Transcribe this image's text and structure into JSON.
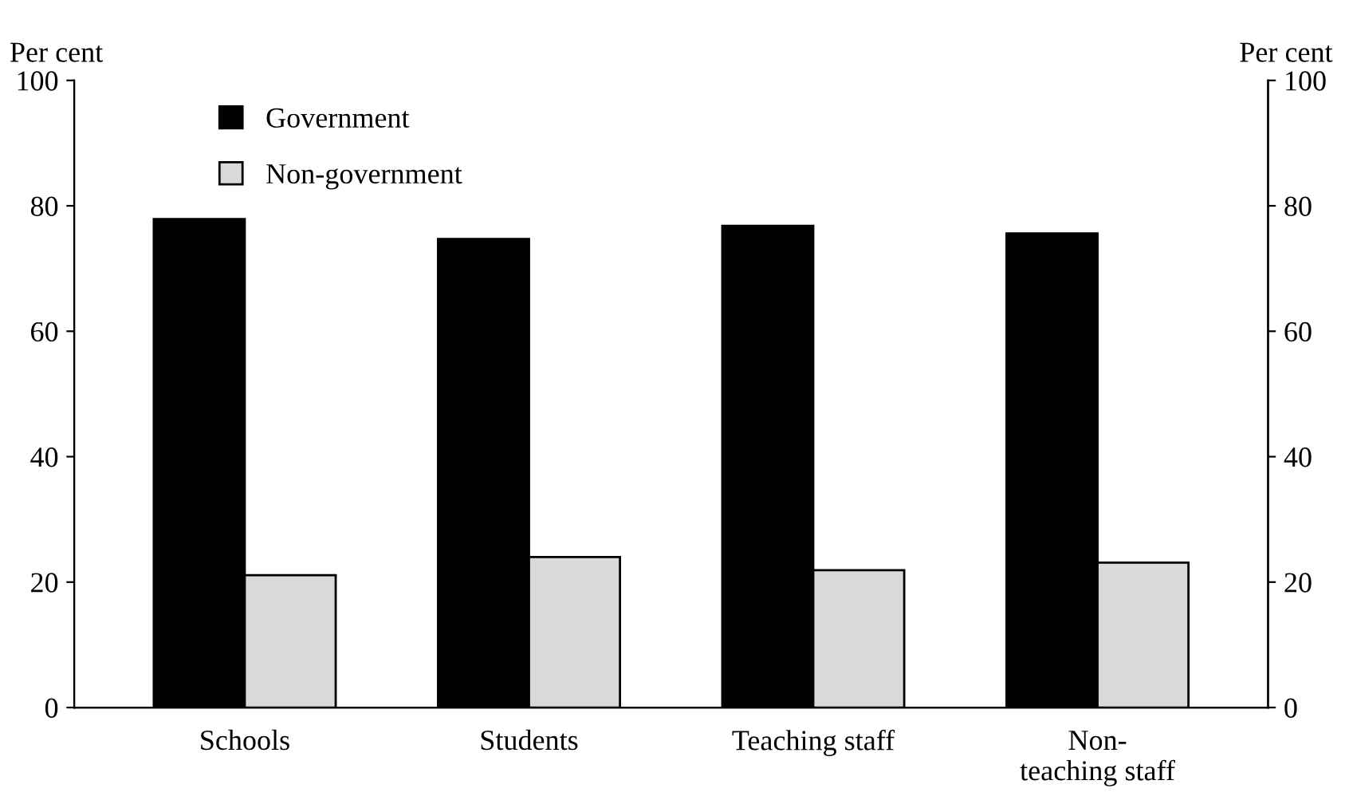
{
  "chart_data": {
    "type": "bar",
    "ylabel": "Per cent",
    "y2label": "Per cent",
    "categories": [
      "Schools",
      "Students",
      "Teaching staff",
      "Non-\nteaching staff"
    ],
    "series": [
      {
        "name": "Government",
        "color": "#000000",
        "values": [
          77.9,
          74.7,
          76.8,
          75.6
        ]
      },
      {
        "name": "Non-government",
        "color": "#d9d9d9",
        "values": [
          21.1,
          24.0,
          21.9,
          23.1
        ]
      }
    ],
    "ylim": [
      0,
      100
    ],
    "yticks": [
      0,
      20,
      40,
      60,
      80,
      100
    ],
    "y2lim": [
      0,
      100
    ],
    "y2ticks": [
      0,
      20,
      40,
      60,
      80,
      100
    ],
    "grid": false,
    "legend": "top left"
  }
}
